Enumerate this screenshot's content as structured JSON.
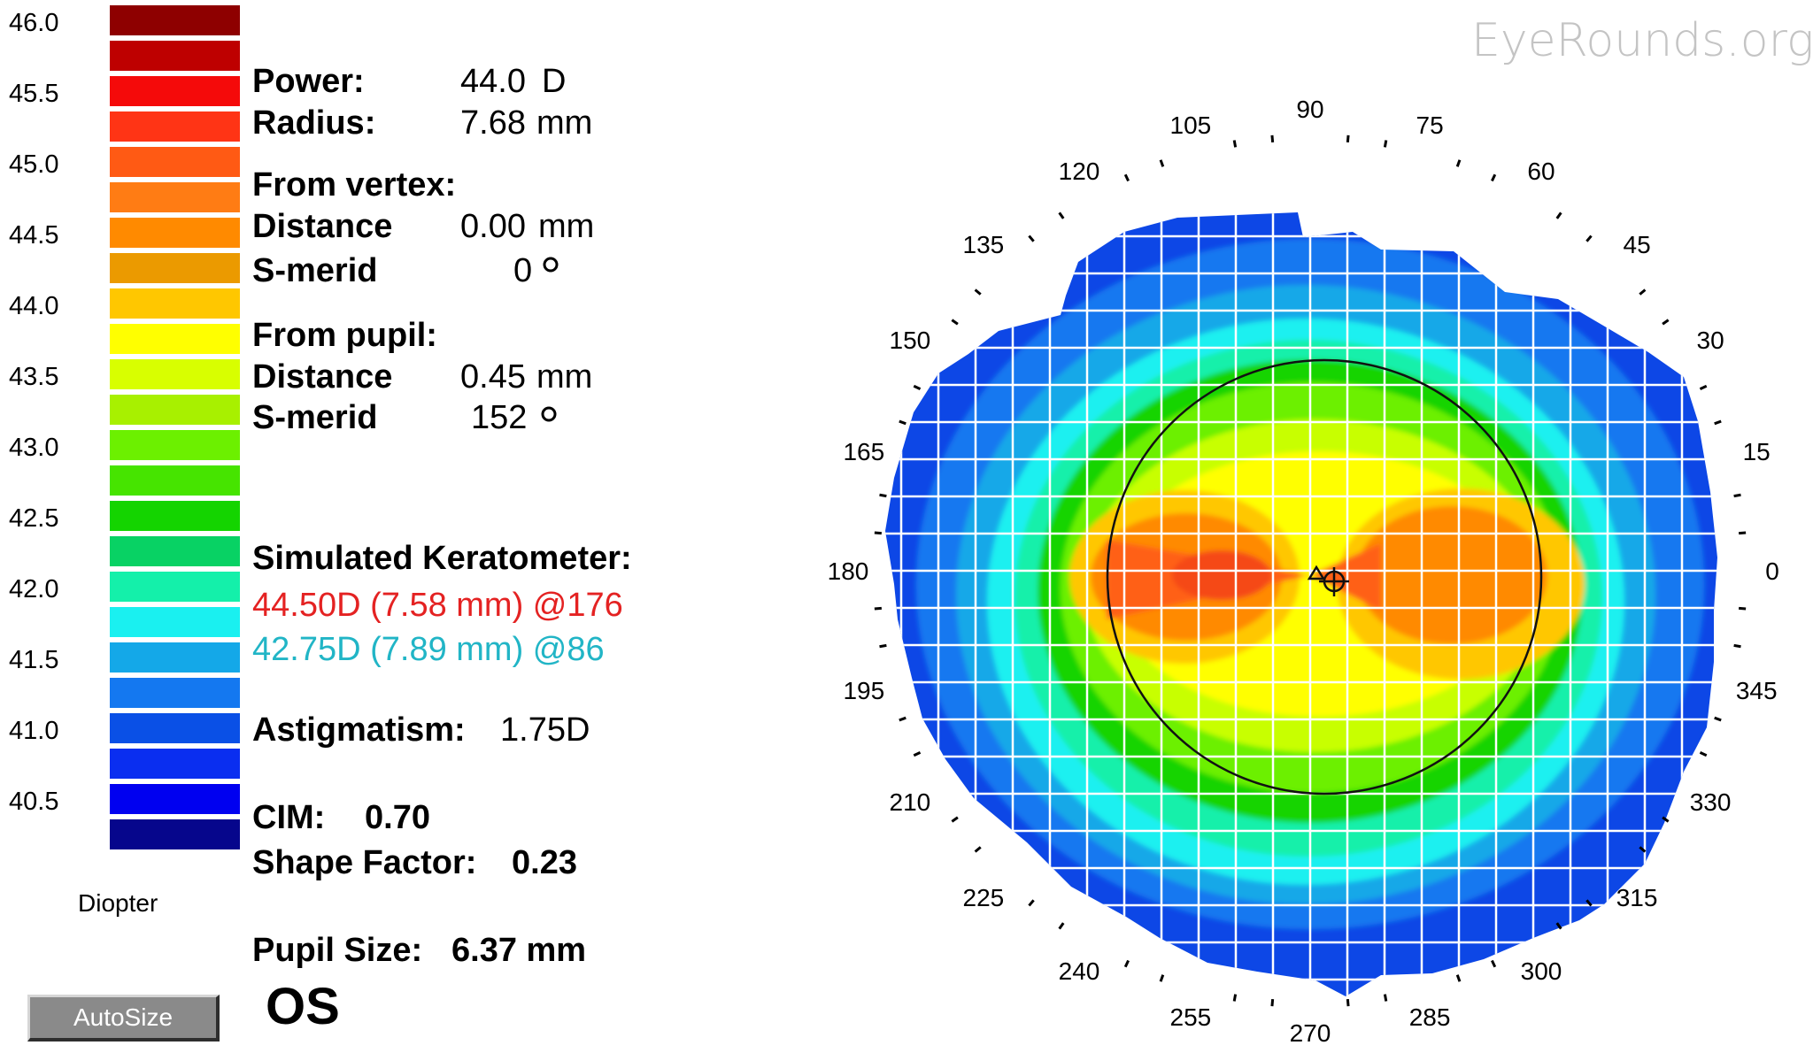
{
  "scale": {
    "values": [
      "46.0",
      "45.5",
      "45.0",
      "44.5",
      "44.0",
      "43.5",
      "43.0",
      "42.5",
      "42.0",
      "41.5",
      "41.0",
      "40.5"
    ],
    "colors": [
      "#8e0000",
      "#be0000",
      "#f50a0a",
      "#ff3415",
      "#ff5a14",
      "#ff7c14",
      "#ff8a00",
      "#eb9a00",
      "#ffc700",
      "#ffff00",
      "#d8ff00",
      "#a8f000",
      "#6cf000",
      "#46e400",
      "#14d400",
      "#08d264",
      "#14f0aa",
      "#1af0f0",
      "#14a8e8",
      "#1478f0",
      "#0a50e6",
      "#0a2ef0",
      "#0000f0",
      "#06068c"
    ],
    "unit_label": "Diopter"
  },
  "autosize_label": "AutoSize",
  "readout": {
    "power_label": "Power:",
    "power_value": "44.0",
    "power_unit": "D",
    "radius_label": "Radius:",
    "radius_value": "7.68",
    "radius_unit": "mm",
    "from_vertex_label": "From vertex:",
    "vertex_distance_label": "Distance",
    "vertex_distance_value": "0.00",
    "vertex_distance_unit": "mm",
    "vertex_smerid_label": "S-merid",
    "vertex_smerid_value": "0",
    "from_pupil_label": "From pupil:",
    "pupil_distance_label": "Distance",
    "pupil_distance_value": "0.45",
    "pupil_distance_unit": "mm",
    "pupil_smerid_label": "S-merid",
    "pupil_smerid_value": "152",
    "simk_label": "Simulated Keratometer:",
    "simk_steep": "44.50D (7.58 mm) @176",
    "simk_flat": "42.75D (7.89 mm) @86",
    "astig_label": "Astigmatism:",
    "astig_value": "1.75D",
    "cim_label": "CIM:",
    "cim_value": "0.70",
    "shape_factor_label": "Shape Factor:",
    "shape_factor_value": "0.23",
    "pupil_size_label": "Pupil Size:",
    "pupil_size_value": "6.37 mm",
    "eye": "OS"
  },
  "watermark": "EyeRounds.org",
  "map": {
    "angle_labels": [
      "0",
      "15",
      "30",
      "45",
      "60",
      "75",
      "90",
      "105",
      "120",
      "135",
      "150",
      "165",
      "180",
      "195",
      "210",
      "225",
      "240",
      "255",
      "270",
      "285",
      "300",
      "315",
      "330",
      "345"
    ],
    "palette": {
      "dark_blue": "#0a46e6",
      "blue": "#1478f0",
      "light_blue": "#14a8e8",
      "cyan": "#1af0f0",
      "aqua": "#14f0aa",
      "green": "#14d400",
      "lime": "#6cf000",
      "yellow_green": "#c8ff00",
      "yellow": "#ffff00",
      "gold": "#ffc700",
      "orange": "#ff8a00",
      "red_orange": "#ff6014",
      "red": "#f54a14"
    }
  }
}
